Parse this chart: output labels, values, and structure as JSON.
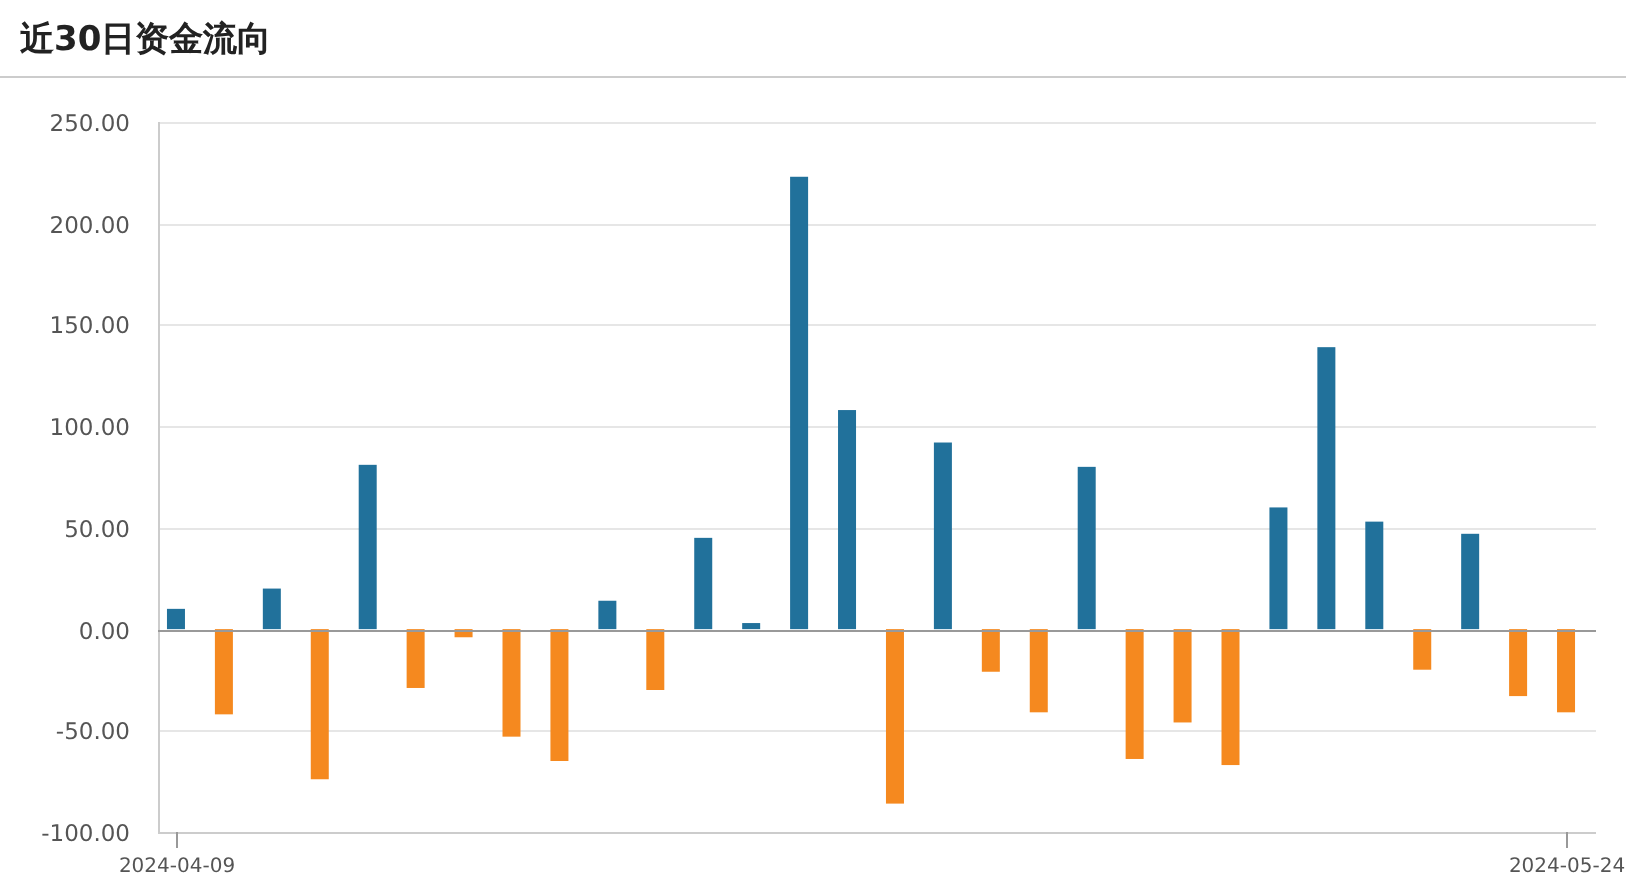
{
  "chart_data": {
    "type": "bar",
    "title": "近30日资金流向",
    "categories": [
      "2024-04-09",
      null,
      null,
      null,
      null,
      null,
      null,
      null,
      null,
      null,
      null,
      null,
      null,
      null,
      null,
      null,
      null,
      null,
      null,
      null,
      null,
      null,
      null,
      null,
      null,
      null,
      null,
      null,
      null,
      "2024-05-24"
    ],
    "values": [
      10,
      -42,
      20,
      -74,
      81,
      -29,
      -4,
      -53,
      -65,
      14,
      -30,
      45,
      3,
      223,
      108,
      -86,
      92,
      -21,
      -41,
      80,
      -64,
      -46,
      -67,
      60,
      139,
      53,
      -20,
      47,
      -33,
      -41
    ],
    "colors": [
      "#21719b",
      "#f5891f",
      "#21719b",
      "#f5891f",
      "#21719b",
      "#f5891f",
      "#f5891f",
      "#f5891f",
      "#f5891f",
      "#21719b",
      "#f5891f",
      "#21719b",
      "#21719b",
      "#21719b",
      "#21719b",
      "#f5891f",
      "#21719b",
      "#f5891f",
      "#f5891f",
      "#21719b",
      "#f5891f",
      "#f5891f",
      "#f5891f",
      "#21719b",
      "#21719b",
      "#21719b",
      "#f5891f",
      "#21719b",
      "#f5891f",
      "#f5891f"
    ],
    "ylim": [
      -100,
      250
    ],
    "yticks": [
      {
        "value": -100,
        "label": "-100.00"
      },
      {
        "value": -50,
        "label": "-50.00"
      },
      {
        "value": 0,
        "label": "0.00"
      },
      {
        "value": 50,
        "label": "50.00"
      },
      {
        "value": 100,
        "label": "100.00"
      },
      {
        "value": 150,
        "label": "150.00"
      },
      {
        "value": 200,
        "label": "200.00"
      },
      {
        "value": 250,
        "label": "250.00"
      }
    ],
    "grid": "y"
  }
}
